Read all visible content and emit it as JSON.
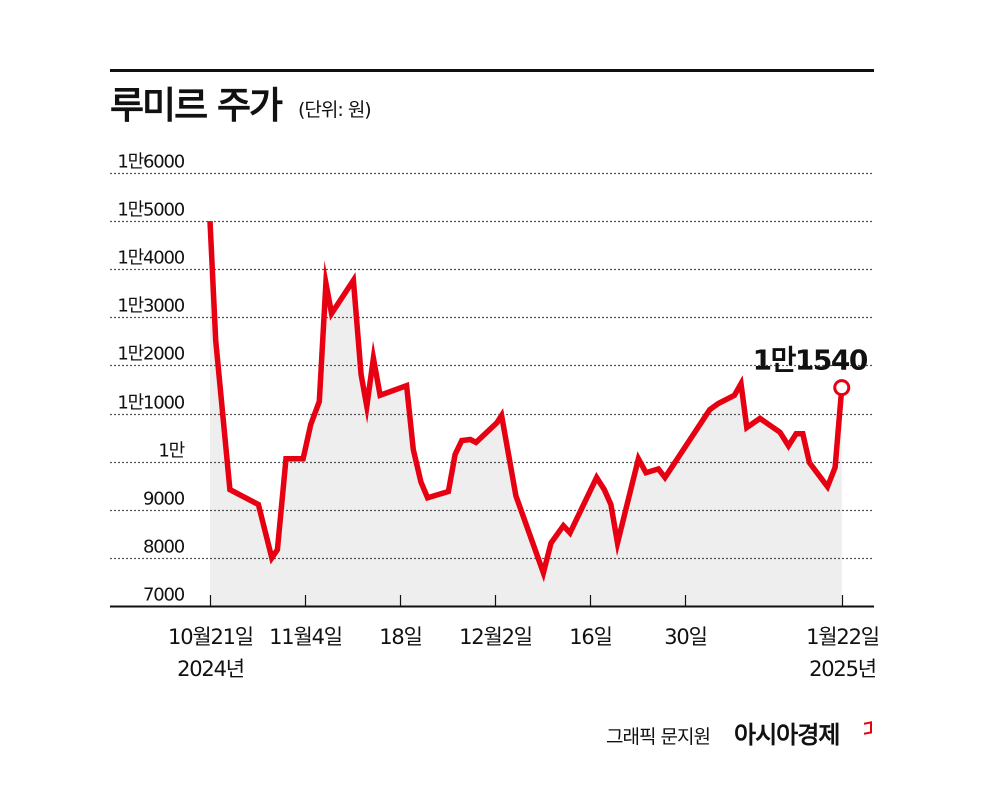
{
  "header": {
    "title": "루미르 주가",
    "unit": "(단위: 원)"
  },
  "footer": {
    "credit": "그래픽 문지원",
    "brand": "아시아경제"
  },
  "colors": {
    "line": "#e60012",
    "fill": "#eeeeee",
    "grid": "#555555",
    "text": "#111111"
  },
  "chart_data": {
    "type": "line",
    "title": "루미르 주가",
    "subtitle": "(단위: 원)",
    "xlabel": "",
    "ylabel": "원",
    "ylim": [
      7000,
      16000
    ],
    "grid": true,
    "legend": null,
    "y_ticks": [
      {
        "value": 16000,
        "label": "1만6000"
      },
      {
        "value": 15000,
        "label": "1만5000"
      },
      {
        "value": 14000,
        "label": "1만4000"
      },
      {
        "value": 13000,
        "label": "1만3000"
      },
      {
        "value": 12000,
        "label": "1만2000"
      },
      {
        "value": 11000,
        "label": "1만1000"
      },
      {
        "value": 10000,
        "label": "1만"
      },
      {
        "value": 9000,
        "label": "9000"
      },
      {
        "value": 8000,
        "label": "8000"
      },
      {
        "value": 7000,
        "label": "7000"
      }
    ],
    "x_ticks": [
      {
        "label": "10월21일",
        "sublabel": "2024년",
        "date": "2024-10-21"
      },
      {
        "label": "11월4일",
        "sublabel": "",
        "date": "2024-11-04"
      },
      {
        "label": "18일",
        "sublabel": "",
        "date": "2024-11-18"
      },
      {
        "label": "12월2일",
        "sublabel": "",
        "date": "2024-12-02"
      },
      {
        "label": "16일",
        "sublabel": "",
        "date": "2024-12-16"
      },
      {
        "label": "30일",
        "sublabel": "",
        "date": "2024-12-30"
      },
      {
        "label": "1월22일",
        "sublabel": "2025년",
        "date": "2025-01-22"
      }
    ],
    "annotation": {
      "label": "1만1540",
      "value": 11540,
      "date": "2025-01-22"
    },
    "series": [
      {
        "name": "루미르 주가",
        "points": [
          {
            "x": 0.0,
            "y": 15000
          },
          {
            "x": 0.06,
            "y": 12520
          },
          {
            "x": 0.21,
            "y": 9420
          },
          {
            "x": 0.51,
            "y": 9110
          },
          {
            "x": 0.65,
            "y": 8000
          },
          {
            "x": 0.71,
            "y": 8170
          },
          {
            "x": 0.8,
            "y": 10060
          },
          {
            "x": 0.98,
            "y": 10060
          },
          {
            "x": 1.06,
            "y": 10770
          },
          {
            "x": 1.15,
            "y": 11250
          },
          {
            "x": 1.22,
            "y": 13710
          },
          {
            "x": 1.28,
            "y": 13080
          },
          {
            "x": 1.51,
            "y": 13770
          },
          {
            "x": 1.59,
            "y": 11810
          },
          {
            "x": 1.65,
            "y": 11150
          },
          {
            "x": 1.72,
            "y": 12150
          },
          {
            "x": 1.79,
            "y": 11380
          },
          {
            "x": 2.07,
            "y": 11580
          },
          {
            "x": 2.14,
            "y": 10250
          },
          {
            "x": 2.22,
            "y": 9580
          },
          {
            "x": 2.29,
            "y": 9250
          },
          {
            "x": 2.51,
            "y": 9380
          },
          {
            "x": 2.58,
            "y": 10150
          },
          {
            "x": 2.65,
            "y": 10440
          },
          {
            "x": 2.74,
            "y": 10460
          },
          {
            "x": 2.8,
            "y": 10400
          },
          {
            "x": 3.02,
            "y": 10810
          },
          {
            "x": 3.07,
            "y": 10960
          },
          {
            "x": 3.22,
            "y": 9290
          },
          {
            "x": 3.51,
            "y": 7690
          },
          {
            "x": 3.59,
            "y": 8310
          },
          {
            "x": 3.72,
            "y": 8670
          },
          {
            "x": 3.79,
            "y": 8520
          },
          {
            "x": 4.07,
            "y": 9670
          },
          {
            "x": 4.15,
            "y": 9420
          },
          {
            "x": 4.22,
            "y": 9110
          },
          {
            "x": 4.29,
            "y": 8310
          },
          {
            "x": 4.51,
            "y": 10060
          },
          {
            "x": 4.59,
            "y": 9770
          },
          {
            "x": 4.72,
            "y": 9850
          },
          {
            "x": 4.79,
            "y": 9670
          },
          {
            "x": 5.26,
            "y": 11080
          },
          {
            "x": 5.35,
            "y": 11210
          },
          {
            "x": 5.52,
            "y": 11380
          },
          {
            "x": 5.59,
            "y": 11620
          },
          {
            "x": 5.65,
            "y": 10710
          },
          {
            "x": 5.79,
            "y": 10900
          },
          {
            "x": 6.0,
            "y": 10610
          },
          {
            "x": 6.09,
            "y": 10330
          },
          {
            "x": 6.17,
            "y": 10580
          },
          {
            "x": 6.24,
            "y": 10580
          },
          {
            "x": 6.31,
            "y": 9980
          },
          {
            "x": 6.5,
            "y": 9480
          },
          {
            "x": 6.58,
            "y": 9880
          },
          {
            "x": 6.65,
            "y": 11540
          }
        ]
      }
    ]
  }
}
